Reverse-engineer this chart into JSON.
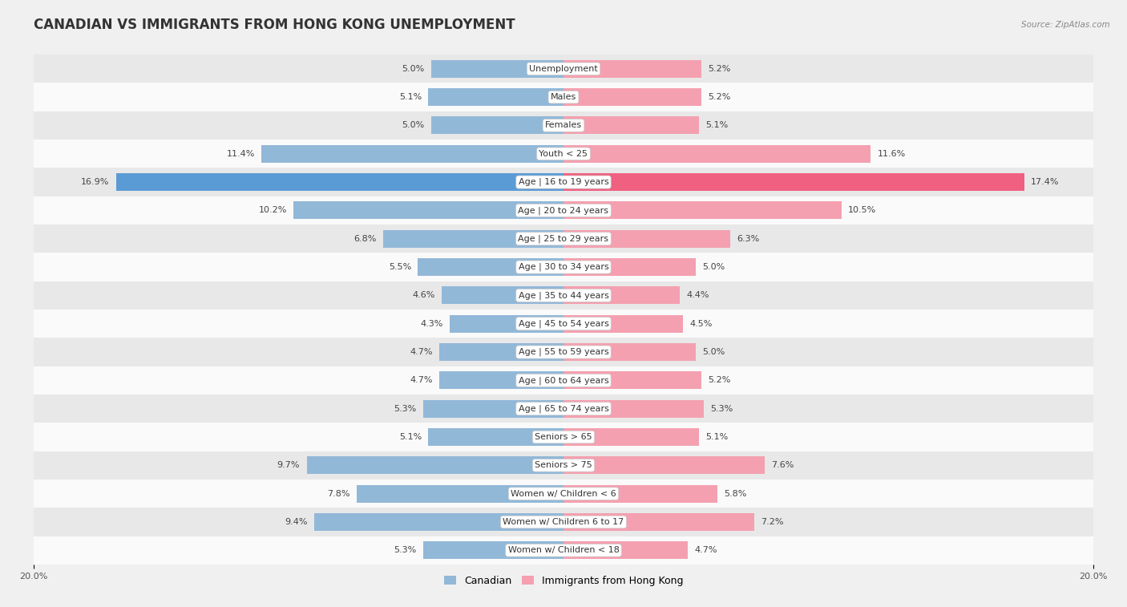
{
  "title": "CANADIAN VS IMMIGRANTS FROM HONG KONG UNEMPLOYMENT",
  "source": "Source: ZipAtlas.com",
  "categories": [
    "Unemployment",
    "Males",
    "Females",
    "Youth < 25",
    "Age | 16 to 19 years",
    "Age | 20 to 24 years",
    "Age | 25 to 29 years",
    "Age | 30 to 34 years",
    "Age | 35 to 44 years",
    "Age | 45 to 54 years",
    "Age | 55 to 59 years",
    "Age | 60 to 64 years",
    "Age | 65 to 74 years",
    "Seniors > 65",
    "Seniors > 75",
    "Women w/ Children < 6",
    "Women w/ Children 6 to 17",
    "Women w/ Children < 18"
  ],
  "canadian": [
    5.0,
    5.1,
    5.0,
    11.4,
    16.9,
    10.2,
    6.8,
    5.5,
    4.6,
    4.3,
    4.7,
    4.7,
    5.3,
    5.1,
    9.7,
    7.8,
    9.4,
    5.3
  ],
  "hk": [
    5.2,
    5.2,
    5.1,
    11.6,
    17.4,
    10.5,
    6.3,
    5.0,
    4.4,
    4.5,
    5.0,
    5.2,
    5.3,
    5.1,
    7.6,
    5.8,
    7.2,
    4.7
  ],
  "canadian_color": "#92b8d8",
  "hk_color": "#f4a0b0",
  "highlight_canadian_color": "#5b9bd5",
  "highlight_hk_color": "#f06080",
  "background_color": "#f0f0f0",
  "row_light_color": "#fafafa",
  "row_dark_color": "#e8e8e8",
  "xlim": 20.0,
  "bar_height": 0.62,
  "legend_canadian": "Canadian",
  "legend_hk": "Immigrants from Hong Kong",
  "title_fontsize": 12,
  "label_fontsize": 8.5,
  "value_fontsize": 8.0,
  "axis_label_fontsize": 8.0
}
